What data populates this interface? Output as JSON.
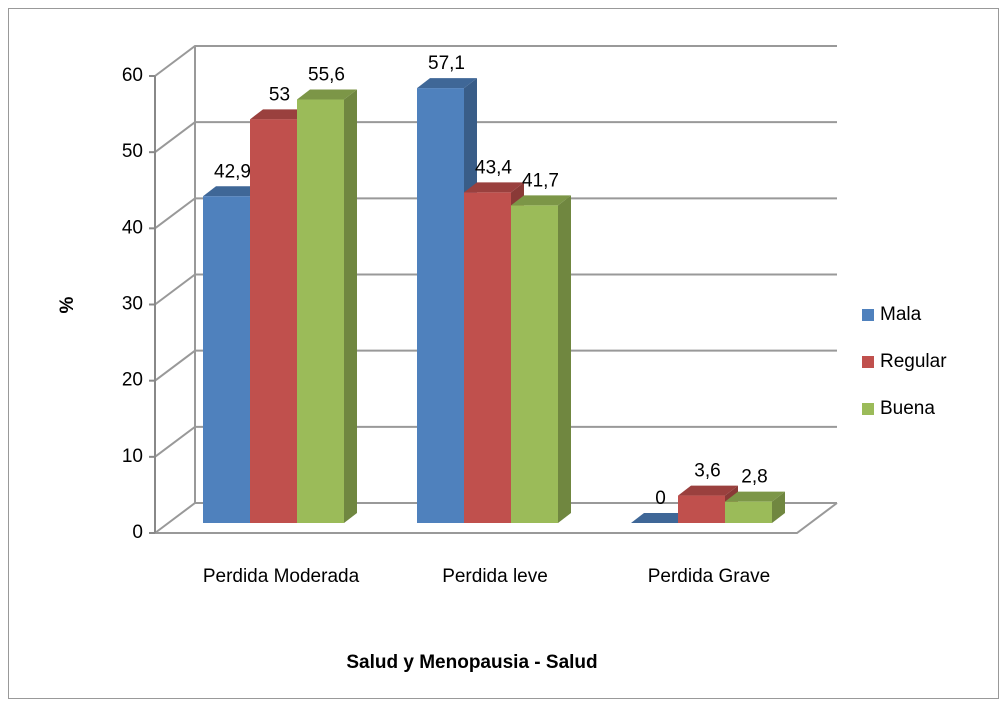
{
  "chart_data": {
    "type": "bar3d",
    "x_label": "Salud y Menopausia - Salud",
    "y_label": "%",
    "categories": [
      "Perdida Moderada",
      "Perdida leve",
      "Perdida Grave"
    ],
    "series": [
      {
        "name": "Mala",
        "color": "#4f81bd",
        "values": [
          42.9,
          57.1,
          0
        ],
        "value_labels": [
          "42,9",
          "57,1",
          "0"
        ]
      },
      {
        "name": "Regular",
        "color": "#c0504d",
        "values": [
          53,
          43.4,
          3.6
        ],
        "value_labels": [
          "53",
          "43,4",
          "3,6"
        ]
      },
      {
        "name": "Buena",
        "color": "#9bbb59",
        "values": [
          55.6,
          41.7,
          2.8
        ],
        "value_labels": [
          "55,6",
          "41,7",
          "2,8"
        ]
      }
    ],
    "ylim": [
      0,
      60
    ],
    "yticks": [
      0,
      10,
      20,
      30,
      40,
      50,
      60
    ],
    "grid": true,
    "legend": "right"
  }
}
